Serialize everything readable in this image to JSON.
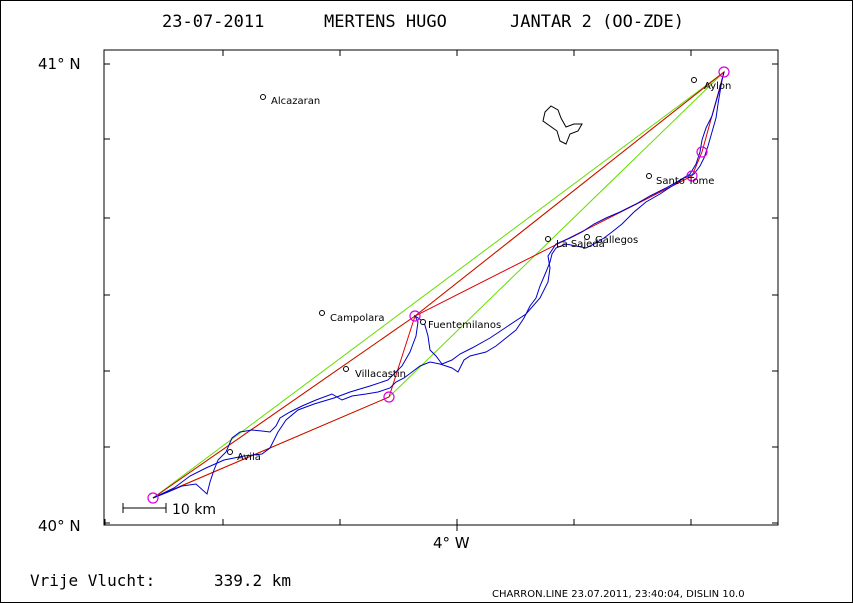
{
  "header": {
    "date": "23-07-2011",
    "pilot": "MERTENS HUGO",
    "glider": "JANTAR 2 (OO-ZDE)"
  },
  "axes": {
    "lat_top": "41° N",
    "lat_bottom": "40° N",
    "lon_bottom": "4° W"
  },
  "scale_bar": {
    "label": "10 km"
  },
  "places": [
    {
      "name": "Alcazaran"
    },
    {
      "name": "Aylon"
    },
    {
      "name": "Santo Tome"
    },
    {
      "name": "La Sajeda"
    },
    {
      "name": "Gallegos"
    },
    {
      "name": "Campolara"
    },
    {
      "name": "Fuentemilanos"
    },
    {
      "name": "Villacastin"
    },
    {
      "name": "Avila"
    }
  ],
  "footer": {
    "free_flight_label": "Vrije Vlucht:",
    "free_flight_value": "339.2 km",
    "software": "CHARRON.LINE 23.07.2011, 23:40:04, DISLIN 10.0"
  },
  "colors": {
    "track": "#0000cc",
    "triangle": "#dd0000",
    "free_flight": "#66dd00",
    "turnpoint": "#dd00dd",
    "frame": "#000000"
  }
}
